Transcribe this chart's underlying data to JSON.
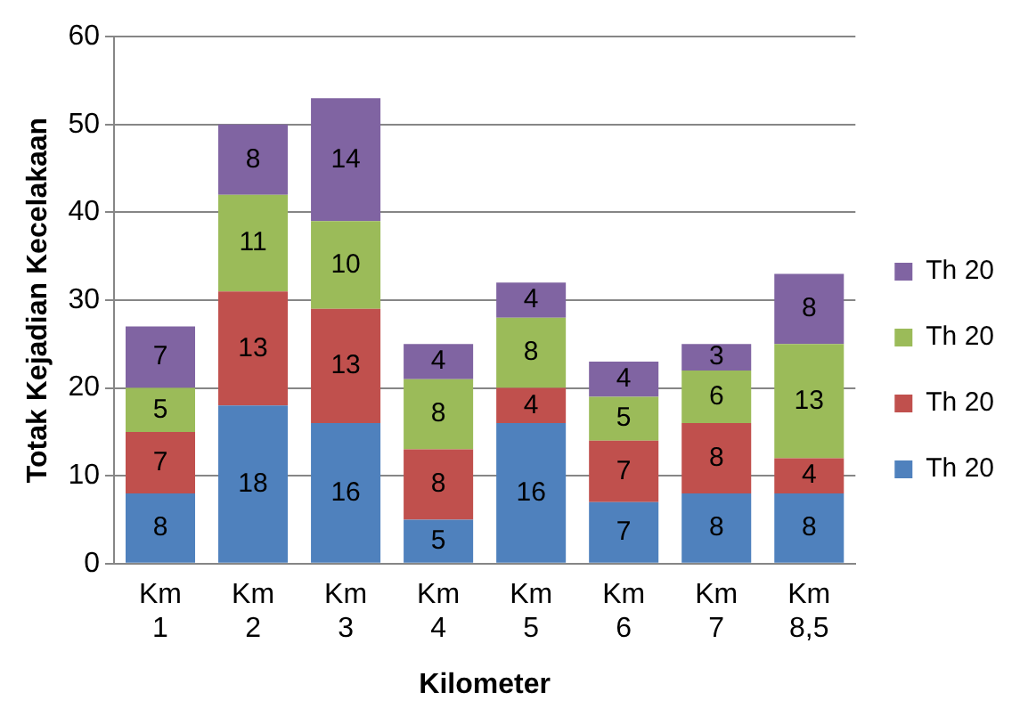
{
  "chart_data": {
    "type": "bar",
    "stacked": true,
    "xlabel": "Kilometer",
    "ylabel": "Totak Kejadian Kecelakaan",
    "categories": [
      "Km 1",
      "Km 2",
      "Km 3",
      "Km 4",
      "Km 5",
      "Km 6",
      "Km 7",
      "Km 8,5"
    ],
    "series": [
      {
        "name": "Th 20",
        "color": "#4f81bd",
        "values": [
          8,
          18,
          16,
          5,
          16,
          7,
          8,
          8
        ]
      },
      {
        "name": "Th 20",
        "color": "#c0504d",
        "values": [
          7,
          13,
          13,
          8,
          4,
          7,
          8,
          4
        ]
      },
      {
        "name": "Th 20",
        "color": "#9bbb59",
        "values": [
          5,
          11,
          10,
          8,
          8,
          5,
          6,
          13
        ]
      },
      {
        "name": "Th 20",
        "color": "#8064a2",
        "values": [
          7,
          8,
          14,
          4,
          4,
          4,
          3,
          8
        ]
      }
    ],
    "ylim": [
      0,
      60
    ],
    "yticks": [
      0,
      10,
      20,
      30,
      40,
      50,
      60
    ],
    "grid": "y",
    "legend": "right",
    "data_labels": true
  }
}
